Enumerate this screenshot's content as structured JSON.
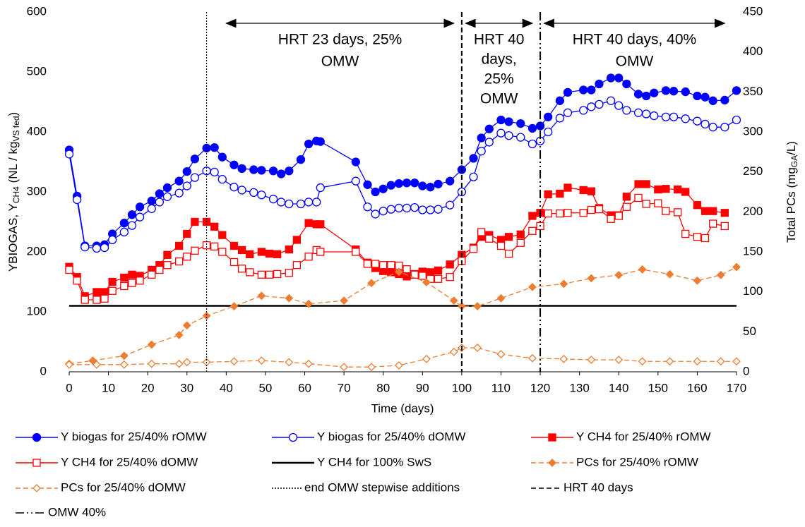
{
  "chart_data": {
    "type": "line",
    "x_label": "Time (days)",
    "y_label": [
      {
        "text": "YBIOGAS, Y",
        "sub": false
      },
      {
        "text": "CH4",
        "sub": true
      },
      {
        "text": " (NL / kg",
        "sub": false
      },
      {
        "text": "VS fed",
        "sub": true
      },
      {
        "text": ")",
        "sub": false
      }
    ],
    "y2_label": [
      {
        "text": "Total PCs (mg",
        "sub": false
      },
      {
        "text": "GA",
        "sub": true
      },
      {
        "text": "/L)",
        "sub": false
      }
    ],
    "xlim": [
      0,
      170
    ],
    "xticks": [
      0,
      10,
      20,
      30,
      40,
      50,
      60,
      70,
      80,
      90,
      100,
      110,
      120,
      130,
      140,
      150,
      160,
      170
    ],
    "ylim": [
      0,
      600
    ],
    "yticks": [
      0,
      100,
      200,
      300,
      400,
      500,
      600
    ],
    "y2lim": [
      0,
      450
    ],
    "y2ticks": [
      0,
      50,
      100,
      150,
      200,
      250,
      300,
      350,
      400,
      450
    ],
    "annotations": [
      {
        "lines": [
          "HRT 23 days, 25%",
          "OMW"
        ],
        "x_from": 40,
        "x_to": 98
      },
      {
        "lines": [
          "HRT 40",
          "days,",
          "25%",
          "OMW"
        ],
        "x_from": 101,
        "x_to": 118
      },
      {
        "lines": [
          "HRT 40 days, 40%",
          "OMW"
        ],
        "x_from": 121,
        "x_to": 167
      }
    ],
    "series": [
      {
        "name": "Y biogas for 25/40% rOMW",
        "kind": "line",
        "color": "#0000ff",
        "marker": "circle",
        "filled": true,
        "dash": "solid",
        "x": [
          0,
          2,
          4,
          7,
          9,
          11,
          14,
          16,
          18,
          21,
          23,
          25,
          28,
          30,
          32,
          35,
          37,
          39,
          42,
          44,
          47,
          49,
          52,
          54,
          56,
          59,
          61,
          63,
          64,
          73,
          76,
          78,
          80,
          82,
          84,
          86,
          88,
          90,
          92,
          94,
          97,
          100,
          103,
          105,
          107,
          110,
          112,
          115,
          118,
          120,
          122,
          125,
          127,
          131,
          133,
          135,
          138,
          140,
          142,
          145,
          147,
          149,
          152,
          154,
          157,
          160,
          162,
          164,
          167,
          170
        ],
        "values": [
          370,
          293,
          210,
          210,
          212,
          230,
          248,
          262,
          275,
          285,
          297,
          307,
          318,
          334,
          355,
          373,
          374,
          358,
          345,
          339,
          337,
          336,
          335,
          330,
          335,
          354,
          380,
          385,
          384,
          350,
          312,
          300,
          305,
          311,
          314,
          315,
          315,
          310,
          308,
          313,
          318,
          337,
          356,
          390,
          405,
          420,
          417,
          414,
          406,
          410,
          425,
          452,
          466,
          470,
          470,
          480,
          490,
          490,
          480,
          463,
          460,
          465,
          469,
          468,
          467,
          460,
          458,
          452,
          453,
          469
        ]
      },
      {
        "name": "Y biogas for 25/40% dOMW",
        "kind": "line",
        "color": "#0000ff",
        "marker": "circle",
        "filled": false,
        "dash": "solid",
        "x": [
          0,
          2,
          4,
          7,
          9,
          11,
          14,
          16,
          18,
          21,
          23,
          25,
          28,
          30,
          32,
          35,
          37,
          39,
          42,
          44,
          47,
          49,
          52,
          54,
          56,
          59,
          61,
          63,
          64,
          73,
          76,
          78,
          80,
          82,
          84,
          86,
          88,
          90,
          92,
          94,
          97,
          100,
          103,
          105,
          107,
          110,
          112,
          115,
          118,
          120,
          122,
          125,
          127,
          131,
          133,
          135,
          138,
          140,
          142,
          145,
          147,
          149,
          152,
          154,
          157,
          160,
          162,
          164,
          167,
          170
        ],
        "values": [
          363,
          287,
          208,
          206,
          207,
          220,
          233,
          244,
          258,
          272,
          283,
          292,
          298,
          310,
          324,
          335,
          333,
          321,
          308,
          303,
          299,
          295,
          288,
          283,
          280,
          280,
          283,
          283,
          307,
          318,
          275,
          263,
          268,
          271,
          273,
          273,
          274,
          270,
          270,
          271,
          278,
          300,
          325,
          368,
          383,
          398,
          394,
          391,
          380,
          385,
          400,
          423,
          432,
          436,
          442,
          446,
          452,
          444,
          436,
          432,
          430,
          427,
          425,
          425,
          422,
          418,
          413,
          408,
          408,
          420
        ]
      },
      {
        "name": "Y CH4 for 25/40% rOMW",
        "kind": "line",
        "color": "#ff0000",
        "marker": "square",
        "filled": true,
        "dash": "solid",
        "x": [
          0,
          2,
          4,
          7,
          9,
          11,
          14,
          16,
          18,
          21,
          23,
          25,
          28,
          30,
          32,
          35,
          37,
          39,
          42,
          44,
          46,
          49,
          51,
          53,
          56,
          58,
          61,
          63,
          64,
          73,
          76,
          78,
          80,
          82,
          84,
          86,
          88,
          90,
          92,
          94,
          97,
          100,
          103,
          105,
          107,
          110,
          112,
          115,
          118,
          120,
          122,
          125,
          127,
          131,
          133,
          135,
          138,
          140,
          142,
          145,
          147,
          150,
          152,
          155,
          157,
          160,
          162,
          164,
          167
        ],
        "values": [
          175,
          158,
          126,
          133,
          133,
          150,
          157,
          162,
          160,
          170,
          178,
          195,
          210,
          230,
          250,
          250,
          242,
          228,
          210,
          203,
          196,
          200,
          197,
          196,
          204,
          220,
          248,
          246,
          246,
          204,
          182,
          173,
          168,
          166,
          163,
          159,
          163,
          167,
          166,
          169,
          179,
          195,
          207,
          225,
          228,
          220,
          225,
          229,
          260,
          265,
          296,
          297,
          307,
          303,
          301,
          273,
          261,
          261,
          292,
          313,
          313,
          304,
          305,
          304,
          300,
          278,
          268,
          268,
          265
        ]
      },
      {
        "name": "Y CH4 for 25/40% dOMW",
        "kind": "line",
        "color": "#ff0000",
        "marker": "square",
        "filled": false,
        "dash": "solid",
        "x": [
          0,
          2,
          4,
          7,
          9,
          11,
          14,
          16,
          18,
          21,
          23,
          25,
          28,
          30,
          32,
          35,
          37,
          39,
          42,
          44,
          46,
          49,
          51,
          53,
          56,
          58,
          61,
          63,
          64,
          73,
          76,
          78,
          80,
          82,
          84,
          86,
          88,
          90,
          92,
          94,
          97,
          100,
          103,
          105,
          107,
          110,
          112,
          115,
          118,
          120,
          122,
          125,
          127,
          131,
          133,
          135,
          138,
          140,
          142,
          145,
          147,
          150,
          152,
          155,
          157,
          160,
          162,
          164,
          167
        ],
        "values": [
          170,
          152,
          120,
          120,
          122,
          135,
          143,
          148,
          152,
          162,
          170,
          178,
          184,
          192,
          202,
          211,
          209,
          200,
          183,
          172,
          166,
          162,
          162,
          163,
          165,
          178,
          192,
          203,
          200,
          200,
          180,
          180,
          178,
          178,
          177,
          171,
          162,
          160,
          155,
          155,
          158,
          185,
          205,
          233,
          222,
          210,
          197,
          215,
          235,
          243,
          264,
          264,
          265,
          265,
          270,
          271,
          255,
          260,
          275,
          290,
          280,
          281,
          268,
          266,
          230,
          225,
          223,
          247,
          243
        ]
      },
      {
        "name": "Y CH4 for 100% SwS",
        "kind": "hline",
        "color": "#000000",
        "dash": "solid",
        "y": 110
      },
      {
        "name": "PCs for 25/40% rOMW",
        "kind": "line",
        "axis": "y2",
        "color": "#ed7d31",
        "marker": "diamond",
        "filled": true,
        "dash": "dashed",
        "x": [
          0,
          6,
          14,
          21,
          28,
          30,
          35,
          42,
          49,
          56,
          61,
          70,
          77,
          84,
          91,
          98,
          100,
          104,
          110,
          118,
          126,
          133,
          140,
          146,
          153,
          160,
          166,
          170
        ],
        "values": [
          10,
          14,
          20,
          34,
          46,
          58,
          70,
          82,
          95,
          92,
          85,
          89,
          111,
          125,
          112,
          89,
          82,
          82,
          92,
          106,
          110,
          117,
          121,
          128,
          122,
          114,
          121,
          131
        ]
      },
      {
        "name": "PCs for 25/40% dOMW",
        "kind": "line",
        "axis": "y2",
        "color": "#ed7d31",
        "marker": "diamond",
        "filled": false,
        "dash": "dashed",
        "x": [
          0,
          7,
          14,
          21,
          28,
          30,
          35,
          42,
          49,
          56,
          61,
          70,
          77,
          84,
          91,
          98,
          100,
          104,
          110,
          118,
          126,
          133,
          140,
          146,
          153,
          160,
          166,
          170
        ],
        "values": [
          9,
          9,
          9,
          10,
          10,
          12,
          12,
          13,
          14,
          12,
          10,
          6,
          6,
          8,
          16,
          25,
          30,
          30,
          22,
          17,
          16,
          15,
          15,
          13,
          13,
          13,
          13,
          13
        ]
      },
      {
        "name": "end OMW stepwise additions",
        "kind": "vline",
        "color": "#000000",
        "dash": "dotted",
        "x": 35
      },
      {
        "name": "HRT 40 days",
        "kind": "vline",
        "color": "#000000",
        "dash": "dashed",
        "x": 100
      },
      {
        "name": "OMW 40%",
        "kind": "vline",
        "color": "#000000",
        "dash": "dashdot",
        "x": 120
      }
    ]
  }
}
